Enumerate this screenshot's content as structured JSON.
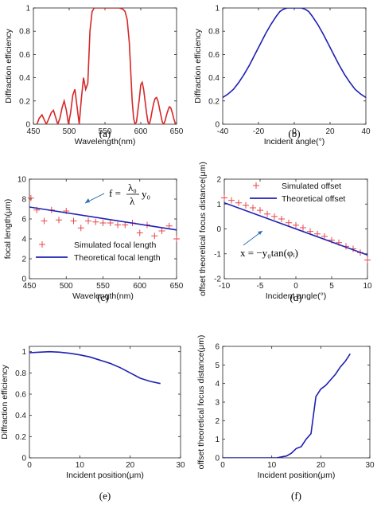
{
  "chart_data": [
    {
      "id": "a",
      "type": "line",
      "caption": "(a)",
      "xlabel": "Wavelength(nm)",
      "ylabel": "Diffraction efficiency",
      "xlim": [
        450,
        650
      ],
      "ylim": [
        0,
        1
      ],
      "xticks": [
        450,
        500,
        550,
        600,
        650
      ],
      "yticks": [
        0,
        0.2,
        0.4,
        0.6,
        0.8,
        1
      ],
      "ytick_labels": [
        "0",
        "0.2",
        "0.4",
        "0.6",
        "0.8",
        "1"
      ],
      "color": "#d62728",
      "series": [
        {
          "x": [
            455,
            458,
            462,
            465,
            468,
            471,
            475,
            478,
            481,
            484,
            487,
            490,
            493,
            496,
            499,
            502,
            505,
            508,
            511,
            514,
            517,
            520,
            523,
            526,
            529,
            532,
            535,
            540,
            550,
            560,
            570,
            575,
            578,
            581,
            584,
            586,
            588,
            590,
            592,
            594,
            596,
            598,
            600,
            602,
            604,
            606,
            608,
            610,
            612,
            614,
            616,
            618,
            620,
            622,
            624,
            626,
            628,
            630,
            632,
            634,
            636,
            638,
            640,
            642,
            644,
            646,
            648,
            650
          ],
          "y": [
            0.0,
            0.05,
            0.08,
            0.04,
            0.0,
            0.04,
            0.1,
            0.12,
            0.06,
            0.0,
            0.05,
            0.14,
            0.2,
            0.12,
            0.0,
            0.1,
            0.25,
            0.3,
            0.15,
            0.0,
            0.22,
            0.4,
            0.3,
            0.35,
            0.8,
            0.97,
            1.0,
            1.0,
            1.0,
            1.0,
            1.0,
            0.99,
            0.97,
            0.9,
            0.7,
            0.45,
            0.2,
            0.05,
            0.0,
            0.02,
            0.12,
            0.22,
            0.34,
            0.36,
            0.3,
            0.2,
            0.1,
            0.02,
            0.0,
            0.05,
            0.12,
            0.18,
            0.22,
            0.23,
            0.2,
            0.14,
            0.08,
            0.02,
            0.0,
            0.03,
            0.08,
            0.12,
            0.15,
            0.14,
            0.1,
            0.05,
            0.01,
            0.0
          ]
        }
      ]
    },
    {
      "id": "b",
      "type": "line",
      "caption": "(b)",
      "xlabel": "Incident angle(°)",
      "ylabel": "Diffraction efficiency",
      "xlim": [
        -40,
        40
      ],
      "ylim": [
        0,
        1
      ],
      "xticks": [
        -40,
        -20,
        0,
        20,
        40
      ],
      "yticks": [
        0,
        0.2,
        0.4,
        0.6,
        0.8,
        1
      ],
      "ytick_labels": [
        "0",
        "0.2",
        "0.4",
        "0.6",
        "0.8",
        "1"
      ],
      "color": "#1f1fb4",
      "series": [
        {
          "x": [
            -40,
            -37,
            -34,
            -31,
            -28,
            -25,
            -22,
            -19,
            -16,
            -13,
            -10,
            -8,
            -6,
            -4,
            -2,
            0,
            2,
            4,
            6,
            8,
            10,
            13,
            16,
            19,
            22,
            25,
            28,
            31,
            34,
            37,
            40
          ],
          "y": [
            0.23,
            0.26,
            0.3,
            0.36,
            0.43,
            0.51,
            0.6,
            0.69,
            0.78,
            0.86,
            0.93,
            0.97,
            0.99,
            1.0,
            1.0,
            1.0,
            1.0,
            1.0,
            0.99,
            0.97,
            0.93,
            0.86,
            0.78,
            0.69,
            0.6,
            0.51,
            0.43,
            0.36,
            0.3,
            0.26,
            0.23
          ]
        }
      ]
    },
    {
      "id": "c",
      "type": "scatter",
      "caption": "(c)",
      "xlabel": "Wavelength(nm)",
      "ylabel": "focal length(μm)",
      "xlim": [
        450,
        650
      ],
      "ylim": [
        0,
        10
      ],
      "xticks": [
        450,
        500,
        550,
        600,
        650
      ],
      "yticks": [
        0,
        2,
        4,
        6,
        8,
        10
      ],
      "ytick_labels": [
        "0",
        "2",
        "4",
        "6",
        "8",
        "10"
      ],
      "series": [
        {
          "name": "Simulated focal length",
          "marker": "+",
          "color": "#e8474a",
          "x": [
            452,
            460,
            470,
            480,
            490,
            500,
            510,
            520,
            530,
            540,
            550,
            560,
            570,
            580,
            590,
            600,
            610,
            620,
            630,
            640,
            650
          ],
          "y": [
            8.1,
            6.9,
            5.8,
            6.9,
            5.9,
            6.8,
            5.8,
            5.1,
            5.8,
            5.7,
            5.6,
            5.6,
            5.4,
            5.4,
            5.6,
            4.6,
            5.4,
            4.3,
            4.8,
            5.3,
            4.0
          ]
        },
        {
          "name": "Theoretical focal length",
          "marker": "line",
          "color": "#1f1fb4",
          "x": [
            450,
            650
          ],
          "y": [
            7.2,
            4.9
          ]
        }
      ],
      "equation": "f = λ₀/λ · y₀"
    },
    {
      "id": "d",
      "type": "scatter",
      "caption": "(d)",
      "xlabel": "Incident angle(°)",
      "ylabel": "offset theoretical focus distance(μm)",
      "xlim": [
        -10,
        10
      ],
      "ylim": [
        -2,
        2
      ],
      "xticks": [
        -10,
        -5,
        0,
        5,
        10
      ],
      "yticks": [
        -2,
        -1,
        0,
        1,
        2
      ],
      "ytick_labels": [
        "-2",
        "-1",
        "0",
        "1",
        "2"
      ],
      "series": [
        {
          "name": "Simulated offset",
          "marker": "+",
          "color": "#e8474a",
          "x": [
            -10,
            -9,
            -8,
            -7,
            -6,
            -5,
            -4,
            -3,
            -2,
            -1,
            0,
            1,
            2,
            3,
            4,
            5,
            6,
            7,
            8,
            9,
            10
          ],
          "y": [
            1.25,
            1.15,
            1.05,
            0.95,
            0.85,
            0.75,
            0.6,
            0.5,
            0.4,
            0.25,
            0.15,
            0.05,
            -0.1,
            -0.2,
            -0.3,
            -0.45,
            -0.55,
            -0.7,
            -0.8,
            -0.95,
            -1.25
          ]
        },
        {
          "name": "Theoretical offset",
          "marker": "line",
          "color": "#1f1fb4",
          "x": [
            -10,
            10
          ],
          "y": [
            1.05,
            -1.05
          ]
        }
      ],
      "equation": "x = −y₀tan(φᵢ)"
    },
    {
      "id": "e",
      "type": "line",
      "caption": "(e)",
      "xlabel": "Incident position(μm)",
      "ylabel": "Diffraction efficiency",
      "xlim": [
        0,
        30
      ],
      "ylim": [
        0,
        1.05
      ],
      "xticks": [
        0,
        10,
        20,
        30
      ],
      "yticks": [
        0,
        0.2,
        0.4,
        0.6,
        0.8,
        1
      ],
      "ytick_labels": [
        "0",
        "0.2",
        "0.4",
        "0.6",
        "0.8",
        "1"
      ],
      "color": "#1f1fb4",
      "series": [
        {
          "x": [
            0,
            2,
            4,
            6,
            8,
            10,
            12,
            14,
            16,
            18,
            20,
            22,
            24,
            26
          ],
          "y": [
            0.99,
            0.995,
            1.0,
            0.995,
            0.985,
            0.97,
            0.95,
            0.92,
            0.89,
            0.85,
            0.8,
            0.75,
            0.72,
            0.7
          ]
        }
      ]
    },
    {
      "id": "f",
      "type": "line",
      "caption": "(f)",
      "xlabel": "Incident position(μm)",
      "ylabel": "offset theoretical focus distance(μm)",
      "xlim": [
        0,
        30
      ],
      "ylim": [
        0,
        6
      ],
      "xticks": [
        0,
        10,
        20,
        30
      ],
      "yticks": [
        0,
        1,
        2,
        3,
        4,
        5,
        6
      ],
      "ytick_labels": [
        "0",
        "1",
        "2",
        "3",
        "4",
        "5",
        "6"
      ],
      "color": "#1f1fb4",
      "series": [
        {
          "x": [
            0,
            11,
            12,
            13,
            14,
            15,
            16,
            17,
            18,
            19,
            20,
            21,
            22,
            23,
            24,
            25,
            26
          ],
          "y": [
            0,
            0,
            0.05,
            0.1,
            0.25,
            0.5,
            0.6,
            1.0,
            1.3,
            3.3,
            3.7,
            3.9,
            4.2,
            4.5,
            4.9,
            5.2,
            5.6
          ]
        }
      ]
    }
  ]
}
